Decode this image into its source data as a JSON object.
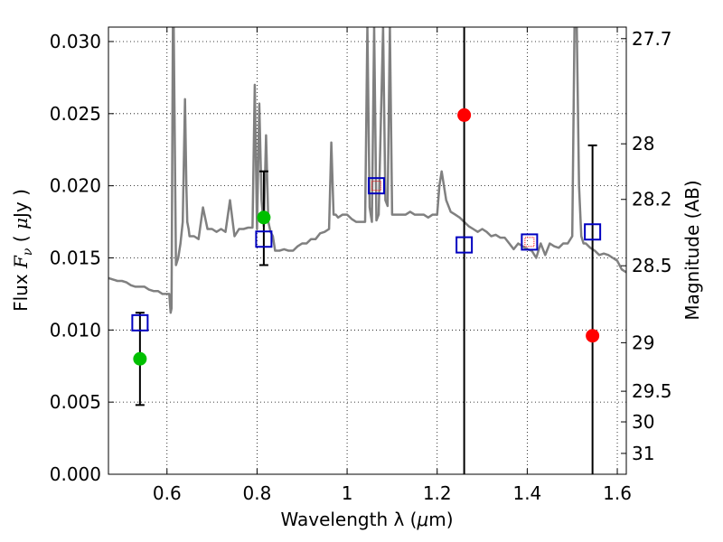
{
  "chart_data": {
    "type": "scatter",
    "title": "",
    "xlabel": {
      "prefix": "Wavelength  λ (",
      "unit_symbol": "μ",
      "suffix": "m)"
    },
    "ylabel": {
      "prefix": "Flux  ",
      "symbol": "F",
      "subscript": "ν",
      "unit_open": "  ( ",
      "unit_symbol": "μ",
      "unit_close": "Jy )"
    },
    "y2label": "Magnitude (AB)",
    "xlim": [
      0.47,
      1.62
    ],
    "ylim": [
      0.0,
      0.031
    ],
    "grid": true,
    "x_ticks": [
      "0.6",
      "0.8",
      "1",
      "1.2",
      "1.4",
      "1.6"
    ],
    "y_ticks": [
      "0.000",
      "0.005",
      "0.010",
      "0.015",
      "0.020",
      "0.025",
      "0.030"
    ],
    "y2_ticks": [
      "27.7",
      "28",
      "28.2",
      "28.5",
      "29",
      "29.5",
      "30",
      "31"
    ],
    "colors": {
      "model": "#808080",
      "observed": "#0000c0",
      "red_points": "#ff0000",
      "green_points": "#00c000",
      "errorbar": "#000000"
    },
    "model_spectrum": {
      "name": "",
      "x": [
        0.47,
        0.48,
        0.49,
        0.5,
        0.51,
        0.52,
        0.53,
        0.54,
        0.55,
        0.56,
        0.57,
        0.58,
        0.59,
        0.6,
        0.605,
        0.608,
        0.61,
        0.613,
        0.615,
        0.62,
        0.625,
        0.63,
        0.635,
        0.64,
        0.643,
        0.645,
        0.648,
        0.65,
        0.655,
        0.66,
        0.67,
        0.68,
        0.69,
        0.7,
        0.71,
        0.72,
        0.73,
        0.74,
        0.75,
        0.76,
        0.77,
        0.78,
        0.79,
        0.795,
        0.8,
        0.805,
        0.81,
        0.815,
        0.82,
        0.825,
        0.83,
        0.835,
        0.84,
        0.85,
        0.86,
        0.87,
        0.88,
        0.89,
        0.9,
        0.91,
        0.92,
        0.93,
        0.94,
        0.95,
        0.96,
        0.965,
        0.97,
        0.975,
        0.98,
        0.99,
        1.0,
        1.01,
        1.02,
        1.03,
        1.04,
        1.045,
        1.05,
        1.055,
        1.06,
        1.065,
        1.07,
        1.08,
        1.085,
        1.09,
        1.095,
        1.1,
        1.11,
        1.12,
        1.13,
        1.14,
        1.15,
        1.16,
        1.17,
        1.18,
        1.19,
        1.2,
        1.205,
        1.21,
        1.215,
        1.22,
        1.23,
        1.24,
        1.25,
        1.26,
        1.27,
        1.28,
        1.29,
        1.3,
        1.31,
        1.32,
        1.33,
        1.34,
        1.35,
        1.36,
        1.37,
        1.38,
        1.39,
        1.4,
        1.41,
        1.42,
        1.43,
        1.44,
        1.45,
        1.46,
        1.47,
        1.48,
        1.49,
        1.5,
        1.505,
        1.51,
        1.515,
        1.52,
        1.525,
        1.53,
        1.54,
        1.55,
        1.56,
        1.57,
        1.58,
        1.59,
        1.6,
        1.61,
        1.62
      ],
      "y": [
        0.0136,
        0.0135,
        0.0134,
        0.0134,
        0.0133,
        0.0131,
        0.013,
        0.013,
        0.013,
        0.0128,
        0.0127,
        0.0127,
        0.0125,
        0.0125,
        0.0125,
        0.0112,
        0.0115,
        0.031,
        0.031,
        0.0145,
        0.015,
        0.016,
        0.0175,
        0.026,
        0.02,
        0.0175,
        0.017,
        0.0165,
        0.0165,
        0.0165,
        0.0163,
        0.0185,
        0.017,
        0.017,
        0.0168,
        0.017,
        0.0168,
        0.019,
        0.0165,
        0.017,
        0.017,
        0.0171,
        0.0171,
        0.027,
        0.017,
        0.0257,
        0.019,
        0.0172,
        0.0235,
        0.0175,
        0.0168,
        0.0165,
        0.0155,
        0.0155,
        0.0156,
        0.0155,
        0.0155,
        0.0158,
        0.016,
        0.016,
        0.0163,
        0.0163,
        0.0167,
        0.0168,
        0.017,
        0.023,
        0.018,
        0.018,
        0.0178,
        0.018,
        0.018,
        0.0177,
        0.0175,
        0.0175,
        0.0175,
        0.031,
        0.0185,
        0.0175,
        0.031,
        0.0176,
        0.018,
        0.031,
        0.019,
        0.0186,
        0.031,
        0.018,
        0.018,
        0.018,
        0.018,
        0.0182,
        0.018,
        0.018,
        0.018,
        0.0178,
        0.018,
        0.018,
        0.02,
        0.021,
        0.02,
        0.019,
        0.0182,
        0.018,
        0.0178,
        0.0175,
        0.0172,
        0.017,
        0.0168,
        0.017,
        0.0168,
        0.0165,
        0.0166,
        0.0164,
        0.0164,
        0.016,
        0.0156,
        0.016,
        0.0158,
        0.0156,
        0.0155,
        0.015,
        0.016,
        0.0152,
        0.016,
        0.0158,
        0.0157,
        0.016,
        0.016,
        0.0165,
        0.031,
        0.031,
        0.02,
        0.0165,
        0.016,
        0.016,
        0.0157,
        0.0155,
        0.0152,
        0.0153,
        0.0152,
        0.015,
        0.0148,
        0.0142,
        0.014
      ]
    },
    "observed_boxes": {
      "name": "",
      "x": [
        0.54,
        0.815,
        1.065,
        1.26,
        1.405,
        1.545
      ],
      "y": [
        0.0105,
        0.0163,
        0.02,
        0.0159,
        0.0161,
        0.0168
      ]
    },
    "small_red_boxes": {
      "name": "",
      "x": [
        1.065,
        1.405
      ],
      "y": [
        0.02,
        0.0161
      ]
    },
    "red_points": {
      "name": "",
      "x": [
        1.26,
        1.545
      ],
      "y": [
        0.0249,
        0.0096
      ]
    },
    "green_points": {
      "name": "",
      "x": [
        0.54,
        0.815
      ],
      "y": [
        0.008,
        0.0178
      ]
    },
    "error_bars": [
      {
        "x": 0.54,
        "low": 0.0048,
        "high": 0.0112
      },
      {
        "x": 0.815,
        "low": 0.0145,
        "high": 0.021
      },
      {
        "x": 1.26,
        "low": 0.0,
        "high": 0.031
      },
      {
        "x": 1.545,
        "low": 0.0,
        "high": 0.0228
      }
    ]
  }
}
